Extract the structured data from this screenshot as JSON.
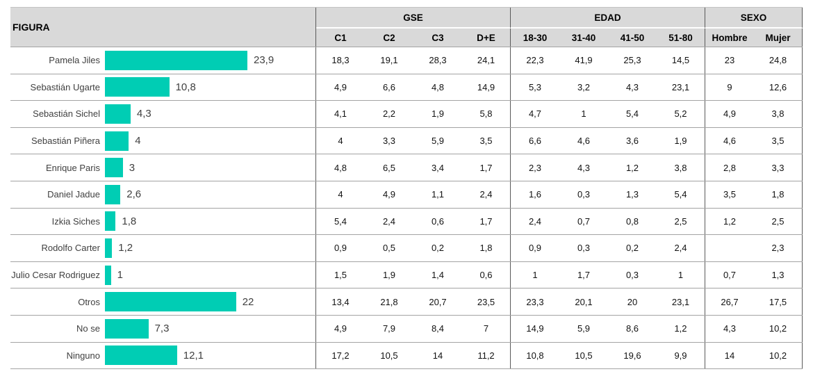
{
  "colors": {
    "bar": "#00CDB4",
    "header_bg": "#D9D9D9"
  },
  "table": {
    "figura_header": "FIGURA",
    "groups": [
      {
        "label": "GSE",
        "columns": [
          "C1",
          "C2",
          "C3",
          "D+E"
        ]
      },
      {
        "label": "EDAD",
        "columns": [
          "18-30",
          "31-40",
          "41-50",
          "51-80"
        ]
      },
      {
        "label": "SEXO",
        "columns": [
          "Hombre",
          "Mujer"
        ]
      }
    ],
    "rows": [
      {
        "name": "Pamela Jiles",
        "total": "23,9",
        "value": 23.9,
        "cells": [
          "18,3",
          "19,1",
          "28,3",
          "24,1",
          "22,3",
          "41,9",
          "25,3",
          "14,5",
          "23",
          "24,8"
        ]
      },
      {
        "name": "Sebastián Ugarte",
        "total": "10,8",
        "value": 10.8,
        "cells": [
          "4,9",
          "6,6",
          "4,8",
          "14,9",
          "5,3",
          "3,2",
          "4,3",
          "23,1",
          "9",
          "12,6"
        ]
      },
      {
        "name": "Sebastián Sichel",
        "total": "4,3",
        "value": 4.3,
        "cells": [
          "4,1",
          "2,2",
          "1,9",
          "5,8",
          "4,7",
          "1",
          "5,4",
          "5,2",
          "4,9",
          "3,8"
        ]
      },
      {
        "name": "Sebastián Piñera",
        "total": "4",
        "value": 4,
        "cells": [
          "4",
          "3,3",
          "5,9",
          "3,5",
          "6,6",
          "4,6",
          "3,6",
          "1,9",
          "4,6",
          "3,5"
        ]
      },
      {
        "name": "Enrique Paris",
        "total": "3",
        "value": 3,
        "cells": [
          "4,8",
          "6,5",
          "3,4",
          "1,7",
          "2,3",
          "4,3",
          "1,2",
          "3,8",
          "2,8",
          "3,3"
        ]
      },
      {
        "name": "Daniel Jadue",
        "total": "2,6",
        "value": 2.6,
        "cells": [
          "4",
          "4,9",
          "1,1",
          "2,4",
          "1,6",
          "0,3",
          "1,3",
          "5,4",
          "3,5",
          "1,8"
        ]
      },
      {
        "name": "Izkia Siches",
        "total": "1,8",
        "value": 1.8,
        "cells": [
          "5,4",
          "2,4",
          "0,6",
          "1,7",
          "2,4",
          "0,7",
          "0,8",
          "2,5",
          "1,2",
          "2,5"
        ]
      },
      {
        "name": "Rodolfo Carter",
        "total": "1,2",
        "value": 1.2,
        "cells": [
          "0,9",
          "0,5",
          "0,2",
          "1,8",
          "0,9",
          "0,3",
          "0,2",
          "2,4",
          "",
          "2,3"
        ]
      },
      {
        "name": "Julio Cesar Rodriguez",
        "total": "1",
        "value": 1,
        "cells": [
          "1,5",
          "1,9",
          "1,4",
          "0,6",
          "1",
          "1,7",
          "0,3",
          "1",
          "0,7",
          "1,3"
        ]
      },
      {
        "name": "Otros",
        "total": "22",
        "value": 22,
        "cells": [
          "13,4",
          "21,8",
          "20,7",
          "23,5",
          "23,3",
          "20,1",
          "20",
          "23,1",
          "26,7",
          "17,5"
        ]
      },
      {
        "name": "No se",
        "total": "7,3",
        "value": 7.3,
        "cells": [
          "4,9",
          "7,9",
          "8,4",
          "7",
          "14,9",
          "5,9",
          "8,6",
          "1,2",
          "4,3",
          "10,2"
        ]
      },
      {
        "name": "Ninguno",
        "total": "12,1",
        "value": 12.1,
        "cells": [
          "17,2",
          "10,5",
          "14",
          "11,2",
          "10,8",
          "10,5",
          "19,6",
          "9,9",
          "14",
          "10,2"
        ]
      }
    ]
  },
  "chart_data": {
    "type": "bar",
    "orientation": "horizontal",
    "title": "FIGURA",
    "legend_position": "none",
    "grid": false,
    "xlim": [
      0,
      25
    ],
    "categories": [
      "Pamela Jiles",
      "Sebastián Ugarte",
      "Sebastián Sichel",
      "Sebastián Piñera",
      "Enrique Paris",
      "Daniel Jadue",
      "Izkia Siches",
      "Rodolfo Carter",
      "Julio Cesar Rodriguez",
      "Otros",
      "No se",
      "Ninguno"
    ],
    "values": [
      23.9,
      10.8,
      4.3,
      4,
      3,
      2.6,
      1.8,
      1.2,
      1,
      22,
      7.3,
      12.1
    ],
    "series": [
      {
        "group": "GSE",
        "name": "C1",
        "values": [
          18.3,
          4.9,
          4.1,
          4,
          4.8,
          4,
          5.4,
          0.9,
          1.5,
          13.4,
          4.9,
          17.2
        ]
      },
      {
        "group": "GSE",
        "name": "C2",
        "values": [
          19.1,
          6.6,
          2.2,
          3.3,
          6.5,
          4.9,
          2.4,
          0.5,
          1.9,
          21.8,
          7.9,
          10.5
        ]
      },
      {
        "group": "GSE",
        "name": "C3",
        "values": [
          28.3,
          4.8,
          1.9,
          5.9,
          3.4,
          1.1,
          0.6,
          0.2,
          1.4,
          20.7,
          8.4,
          14
        ]
      },
      {
        "group": "GSE",
        "name": "D+E",
        "values": [
          24.1,
          14.9,
          5.8,
          3.5,
          1.7,
          2.4,
          1.7,
          1.8,
          0.6,
          23.5,
          7,
          11.2
        ]
      },
      {
        "group": "EDAD",
        "name": "18-30",
        "values": [
          22.3,
          5.3,
          4.7,
          6.6,
          2.3,
          1.6,
          2.4,
          0.9,
          1,
          23.3,
          14.9,
          10.8
        ]
      },
      {
        "group": "EDAD",
        "name": "31-40",
        "values": [
          41.9,
          3.2,
          1,
          4.6,
          4.3,
          0.3,
          0.7,
          0.3,
          1.7,
          20.1,
          5.9,
          10.5
        ]
      },
      {
        "group": "EDAD",
        "name": "41-50",
        "values": [
          25.3,
          4.3,
          5.4,
          3.6,
          1.2,
          1.3,
          0.8,
          0.2,
          0.3,
          20,
          8.6,
          19.6
        ]
      },
      {
        "group": "EDAD",
        "name": "51-80",
        "values": [
          14.5,
          23.1,
          5.2,
          1.9,
          3.8,
          5.4,
          2.5,
          2.4,
          1,
          23.1,
          1.2,
          9.9
        ]
      },
      {
        "group": "SEXO",
        "name": "Hombre",
        "values": [
          23,
          9,
          4.9,
          4.6,
          2.8,
          3.5,
          1.2,
          null,
          0.7,
          26.7,
          4.3,
          14
        ]
      },
      {
        "group": "SEXO",
        "name": "Mujer",
        "values": [
          24.8,
          12.6,
          3.8,
          3.5,
          3.3,
          1.8,
          2.5,
          2.3,
          1.3,
          17.5,
          10.2,
          10.2
        ]
      }
    ]
  }
}
